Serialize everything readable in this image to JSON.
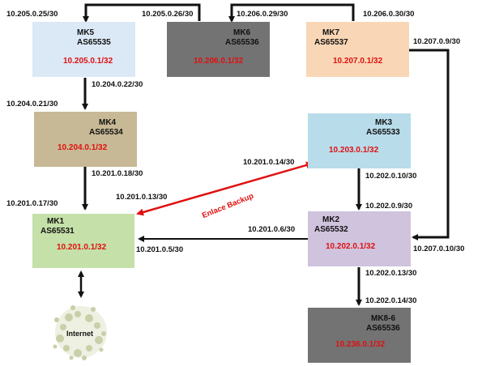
{
  "nodes": {
    "mk5": {
      "name": "MK5",
      "as": "AS65535",
      "ip": "10.205.0.1/32",
      "color": "#dbe8f5"
    },
    "mk6": {
      "name": "MK6",
      "as": "AS65536",
      "ip": "10.206.0.1/32",
      "color": "#737373"
    },
    "mk7": {
      "name": "MK7",
      "as": "AS65537",
      "ip": "10.207.0.1/32",
      "color": "#f9d7b6"
    },
    "mk4": {
      "name": "MK4",
      "as": "AS65534",
      "ip": "10.204.0.1/32",
      "color": "#c7b995"
    },
    "mk3": {
      "name": "MK3",
      "as": "AS65533",
      "ip": "10.203.0.1/32",
      "color": "#b8dcea"
    },
    "mk1": {
      "name": "MK1",
      "as": "AS65531",
      "ip": "10.201.0.1/32",
      "color": "#c5e0a8"
    },
    "mk2": {
      "name": "MK2",
      "as": "AS65532",
      "ip": "10.202.0.1/32",
      "color": "#cfc3de"
    },
    "mk86": {
      "name": "MK8-6",
      "as": "AS65536",
      "ip": "10.236.0.1/32",
      "color": "#737373"
    }
  },
  "links": {
    "l1": "10.205.0.25/30",
    "l2": "10.205.0.26/30",
    "l3": "10.206.0.29/30",
    "l4": "10.206.0.30/30",
    "l5": "10.207.0.9/30",
    "l6": "10.204.0.22/30",
    "l7": "10.204.0.21/30",
    "l8": "10.201.0.18/30",
    "l9": "10.201.0.14/30",
    "l10": "10.202.0.10/30",
    "l11": "10.201.0.13/30",
    "l12": "10.201.0.17/30",
    "l13": "10.202.0.9/30",
    "l14": "10.201.0.6/30",
    "l15": "10.201.0.5/30",
    "l16": "10.207.0.10/30",
    "l17": "10.202.0.13/30",
    "l18": "10.202.0.14/30"
  },
  "backup_label": "Enlace Backup",
  "internet_label": "Internet"
}
